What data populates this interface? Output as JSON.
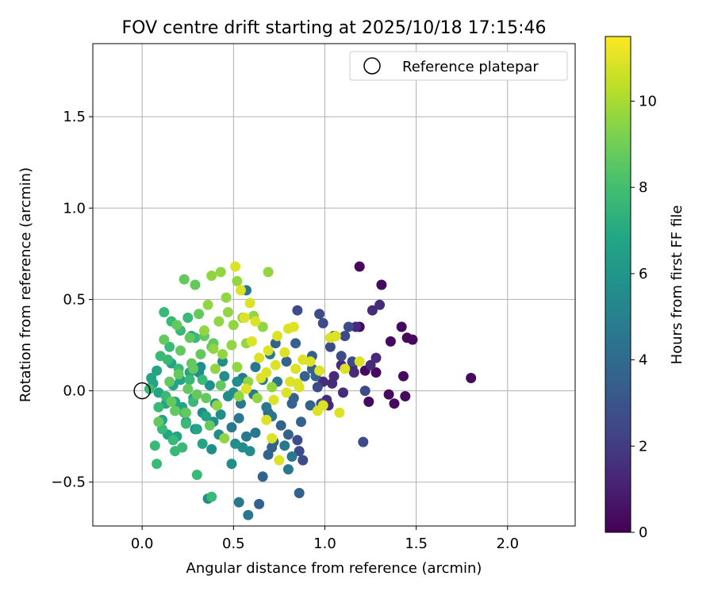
{
  "chart_data": {
    "type": "scatter",
    "title": "FOV centre drift starting at 2025/10/18 17:15:46",
    "xlabel": "Angular distance from reference (arcmin)",
    "ylabel": "Rotation from reference (arcmin)",
    "xlim": [
      -0.27,
      2.37
    ],
    "ylim": [
      -0.74,
      1.9
    ],
    "xticks": [
      0.0,
      0.5,
      1.0,
      1.5,
      2.0
    ],
    "xtick_labels": [
      "0.0",
      "0.5",
      "1.0",
      "1.5",
      "2.0"
    ],
    "yticks": [
      -0.5,
      0.0,
      0.5,
      1.0,
      1.5
    ],
    "ytick_labels": [
      "−0.5",
      "0.0",
      "0.5",
      "1.0",
      "1.5"
    ],
    "grid": true,
    "legend": {
      "placement": "top-right",
      "entries": [
        "Reference platepar"
      ]
    },
    "reference_point": {
      "x": 0.0,
      "y": 0.0,
      "label": "Reference platepar"
    },
    "colorbar": {
      "label": "Hours from first FF file",
      "colormap": "viridis",
      "range": [
        0,
        11.5
      ],
      "ticks": [
        0,
        2,
        4,
        6,
        8,
        10
      ],
      "tick_labels": [
        "0",
        "2",
        "4",
        "6",
        "8",
        "10"
      ]
    },
    "series": [
      {
        "name": "hours 0-1",
        "hours": 0.3,
        "x": [
          1.8,
          1.19,
          1.31,
          1.48,
          1.45,
          1.42,
          1.36,
          1.43,
          1.38,
          1.35,
          1.44,
          1.28,
          1.22,
          1.19,
          1.24
        ],
        "y": [
          0.07,
          0.68,
          0.58,
          0.28,
          0.29,
          0.35,
          0.27,
          0.08,
          -0.07,
          -0.02,
          -0.03,
          0.1,
          0.11,
          0.35,
          -0.06
        ]
      },
      {
        "name": "hours 1-2",
        "hours": 1.4,
        "x": [
          1.3,
          1.26,
          1.25,
          1.28,
          1.17,
          1.15,
          1.09,
          1.05,
          1.02,
          1.04,
          1.1,
          1.16,
          0.99,
          1.01,
          1.05
        ],
        "y": [
          0.47,
          0.44,
          0.14,
          0.18,
          0.35,
          0.13,
          0.14,
          0.08,
          -0.08,
          0.04,
          -0.01,
          0.1,
          0.05,
          -0.05,
          0.3
        ]
      },
      {
        "name": "hours 2-3",
        "hours": 2.6,
        "x": [
          0.85,
          0.97,
          0.99,
          1.13,
          1.11,
          1.03,
          1.09,
          1.15,
          1.22,
          1.21,
          0.98,
          0.96,
          0.85,
          0.86,
          0.88
        ],
        "y": [
          0.44,
          0.42,
          0.37,
          0.35,
          0.3,
          0.24,
          0.19,
          0.16,
          0.0,
          -0.28,
          -0.07,
          0.02,
          -0.27,
          -0.33,
          -0.38
        ]
      },
      {
        "name": "hours 3-4",
        "hours": 3.6,
        "x": [
          0.84,
          0.73,
          0.79,
          0.93,
          0.95,
          0.89,
          0.83,
          0.92,
          0.87,
          0.76,
          0.8,
          0.71,
          0.72,
          0.69,
          0.66,
          0.86,
          0.64,
          0.93,
          0.82,
          0.69
        ],
        "y": [
          0.26,
          0.26,
          0.16,
          0.19,
          0.08,
          0.08,
          -0.04,
          -0.08,
          -0.17,
          -0.19,
          -0.24,
          -0.31,
          -0.28,
          -0.35,
          -0.47,
          -0.56,
          -0.62,
          0.12,
          -0.07,
          -0.12
        ]
      },
      {
        "name": "hours 4-5",
        "hours": 4.6,
        "x": [
          0.57,
          0.7,
          0.62,
          0.55,
          0.66,
          0.74,
          0.61,
          0.54,
          0.71,
          0.53,
          0.49,
          0.57,
          0.78,
          0.82,
          0.8,
          0.58,
          0.68,
          0.53,
          0.62
        ],
        "y": [
          0.55,
          0.2,
          0.13,
          0.07,
          0.06,
          0.05,
          -0.02,
          -0.07,
          -0.14,
          -0.15,
          -0.2,
          -0.25,
          -0.3,
          -0.36,
          -0.43,
          -0.68,
          -0.09,
          -0.61,
          -0.23
        ]
      },
      {
        "name": "hours 5-6",
        "hours": 5.6,
        "x": [
          0.32,
          0.37,
          0.44,
          0.52,
          0.4,
          0.33,
          0.47,
          0.29,
          0.42,
          0.51,
          0.59,
          0.38,
          0.36,
          0.49,
          0.55,
          0.45,
          0.31,
          0.43,
          0.39,
          0.5
        ],
        "y": [
          0.13,
          0.03,
          0.16,
          0.05,
          -0.07,
          -0.12,
          -0.03,
          -0.21,
          -0.24,
          -0.29,
          -0.33,
          -0.32,
          -0.59,
          -0.4,
          -0.31,
          0.08,
          0.1,
          -0.13,
          -0.17,
          -0.01
        ]
      },
      {
        "name": "hours 6-7",
        "hours": 6.7,
        "x": [
          0.05,
          0.09,
          0.17,
          0.26,
          0.13,
          0.22,
          0.11,
          0.3,
          0.19,
          0.24,
          0.06,
          0.16,
          0.28,
          0.21,
          0.35,
          0.14,
          0.27,
          0.33,
          0.08,
          0.18
        ],
        "y": [
          0.07,
          -0.01,
          0.03,
          0.1,
          -0.07,
          -0.09,
          -0.16,
          -0.21,
          -0.25,
          -0.17,
          0.04,
          0.15,
          -0.04,
          0.06,
          -0.14,
          -0.24,
          0.3,
          -0.29,
          0.11,
          -0.06
        ]
      },
      {
        "name": "hours 7-8",
        "hours": 7.7,
        "x": [
          0.12,
          0.15,
          0.21,
          0.1,
          0.26,
          0.09,
          0.04,
          0.17,
          0.24,
          0.3,
          0.14,
          0.2,
          0.07,
          0.22,
          0.18,
          0.28,
          0.11,
          0.38,
          0.16,
          0.25,
          0.29,
          0.13,
          0.33,
          0.08,
          0.23
        ],
        "y": [
          0.43,
          0.24,
          0.33,
          0.19,
          0.06,
          -0.09,
          0.01,
          -0.27,
          -0.18,
          -0.46,
          0.17,
          0.12,
          -0.3,
          -0.31,
          -0.33,
          -0.06,
          -0.21,
          -0.58,
          0.38,
          0.4,
          0.29,
          -0.03,
          0.06,
          -0.4,
          -0.12
        ]
      },
      {
        "name": "hours 8-9",
        "hours": 8.7,
        "x": [
          0.23,
          0.29,
          0.31,
          0.19,
          0.26,
          0.34,
          0.21,
          0.15,
          0.28,
          0.35,
          0.41,
          0.37,
          0.24,
          0.09,
          0.18,
          0.32,
          0.38,
          0.27,
          0.12,
          0.2,
          0.3,
          0.43,
          0.16,
          0.25,
          0.39
        ],
        "y": [
          0.61,
          0.58,
          0.42,
          0.36,
          0.29,
          0.3,
          0.22,
          0.05,
          0.12,
          -0.04,
          -0.08,
          -0.19,
          -0.12,
          -0.17,
          -0.11,
          0.2,
          0.24,
          0.15,
          0.28,
          0.09,
          -0.02,
          0.03,
          -0.06,
          0.01,
          0.26
        ]
      },
      {
        "name": "hours 9-10",
        "hours": 9.6,
        "x": [
          0.69,
          0.43,
          0.38,
          0.52,
          0.46,
          0.36,
          0.47,
          0.42,
          0.55,
          0.5,
          0.61,
          0.66,
          0.39,
          0.57,
          0.44,
          0.49,
          0.4,
          0.52,
          0.58,
          0.71,
          0.53,
          0.41,
          0.63,
          0.45,
          0.34
        ],
        "y": [
          0.65,
          0.65,
          0.63,
          0.6,
          0.51,
          0.47,
          0.43,
          0.38,
          0.4,
          0.36,
          0.41,
          0.35,
          0.23,
          0.26,
          0.2,
          0.25,
          0.12,
          0.13,
          0.05,
          0.02,
          -0.03,
          -0.08,
          -0.04,
          -0.26,
          0.33
        ]
      },
      {
        "name": "hours 10-11.5",
        "hours": 10.9,
        "x": [
          0.51,
          0.54,
          0.59,
          0.56,
          0.62,
          0.74,
          0.8,
          0.78,
          0.69,
          0.64,
          0.68,
          0.73,
          0.81,
          0.84,
          0.88,
          0.92,
          0.85,
          0.79,
          1.06,
          1.11,
          1.19,
          1.03,
          0.99,
          0.75,
          0.68,
          0.71,
          0.83,
          0.96,
          0.6,
          0.57,
          0.65,
          0.72,
          0.86,
          1.08,
          0.97
        ],
        "y": [
          0.68,
          0.55,
          0.48,
          0.4,
          0.38,
          0.3,
          0.34,
          0.21,
          0.22,
          0.18,
          0.1,
          0.14,
          0.05,
          0.12,
          0.17,
          0.16,
          0.04,
          -0.01,
          0.3,
          0.12,
          0.16,
          0.29,
          -0.08,
          -0.38,
          -0.16,
          -0.26,
          0.35,
          -0.11,
          0.27,
          0.01,
          0.07,
          -0.05,
          0.02,
          -0.12,
          0.11
        ]
      }
    ]
  }
}
